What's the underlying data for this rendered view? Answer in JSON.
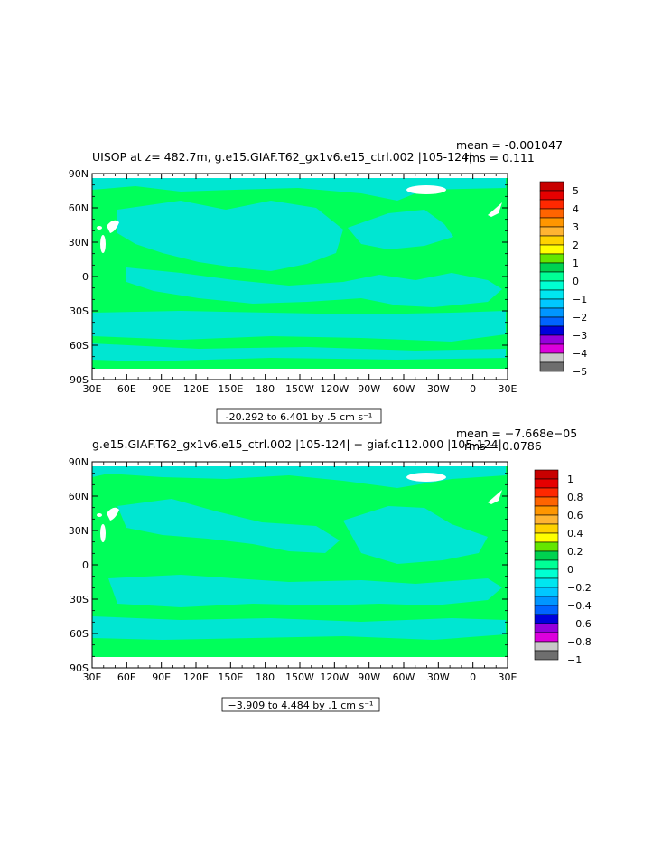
{
  "colors": {
    "ocean_light": "#00ff5a",
    "ocean_cyan": "#00e6d2",
    "land": "#ffffff",
    "frame": "#000000"
  },
  "chart_data": [
    {
      "type": "heatmap",
      "title": "UISOP at z= 482.7m, g.e15.GIAF.T62_gx1v6.e15_ctrl.002 |105-124|",
      "stats": {
        "mean": "mean = -0.001047",
        "rms": "rms = 0.111"
      },
      "x_ticks": [
        "30E",
        "60E",
        "90E",
        "120E",
        "150E",
        "180",
        "150W",
        "120W",
        "90W",
        "60W",
        "30W",
        "0",
        "30E"
      ],
      "y_ticks": [
        "90N",
        "60N",
        "30N",
        "0",
        "30S",
        "60S",
        "90S"
      ],
      "contour_info": "-20.292 to 6.401 by .5 cm s⁻¹",
      "colorbar": {
        "labels": [
          "5",
          "4",
          "3",
          "2",
          "1",
          "0",
          "−1",
          "−2",
          "−3",
          "−4",
          "−5"
        ],
        "colors": [
          "#c80000",
          "#e60000",
          "#ff2800",
          "#ff6400",
          "#ff9600",
          "#ffb432",
          "#ffd200",
          "#ffff00",
          "#64e600",
          "#00d250",
          "#00ff96",
          "#00ffd2",
          "#00e6f0",
          "#00c8ff",
          "#0096ff",
          "#0064ff",
          "#0000dc",
          "#9600dc",
          "#dc00dc",
          "#c8c8c8",
          "#6e6e6e"
        ]
      }
    },
    {
      "type": "heatmap",
      "title": "g.e15.GIAF.T62_gx1v6.e15_ctrl.002 |105-124| − giaf.c112.000 |105-124|",
      "stats": {
        "mean": "mean = −7.668e−05",
        "rms": "rms = 0.0786"
      },
      "x_ticks": [
        "30E",
        "60E",
        "90E",
        "120E",
        "150E",
        "180",
        "150W",
        "120W",
        "90W",
        "60W",
        "30W",
        "0",
        "30E"
      ],
      "y_ticks": [
        "90N",
        "60N",
        "30N",
        "0",
        "30S",
        "60S",
        "90S"
      ],
      "contour_info": "−3.909 to 4.484 by .1 cm s⁻¹",
      "colorbar": {
        "labels": [
          "1",
          "0.8",
          "0.6",
          "0.4",
          "0.2",
          "0",
          "−0.2",
          "−0.4",
          "−0.6",
          "−0.8",
          "−1"
        ],
        "colors": [
          "#c80000",
          "#e60000",
          "#ff2800",
          "#ff6400",
          "#ff9600",
          "#ffb432",
          "#ffd200",
          "#ffff00",
          "#64e600",
          "#00d250",
          "#00ff96",
          "#00ffd2",
          "#00e6f0",
          "#00c8ff",
          "#0096ff",
          "#0064ff",
          "#0000dc",
          "#9600dc",
          "#dc00dc",
          "#c8c8c8",
          "#6e6e6e"
        ]
      }
    }
  ]
}
